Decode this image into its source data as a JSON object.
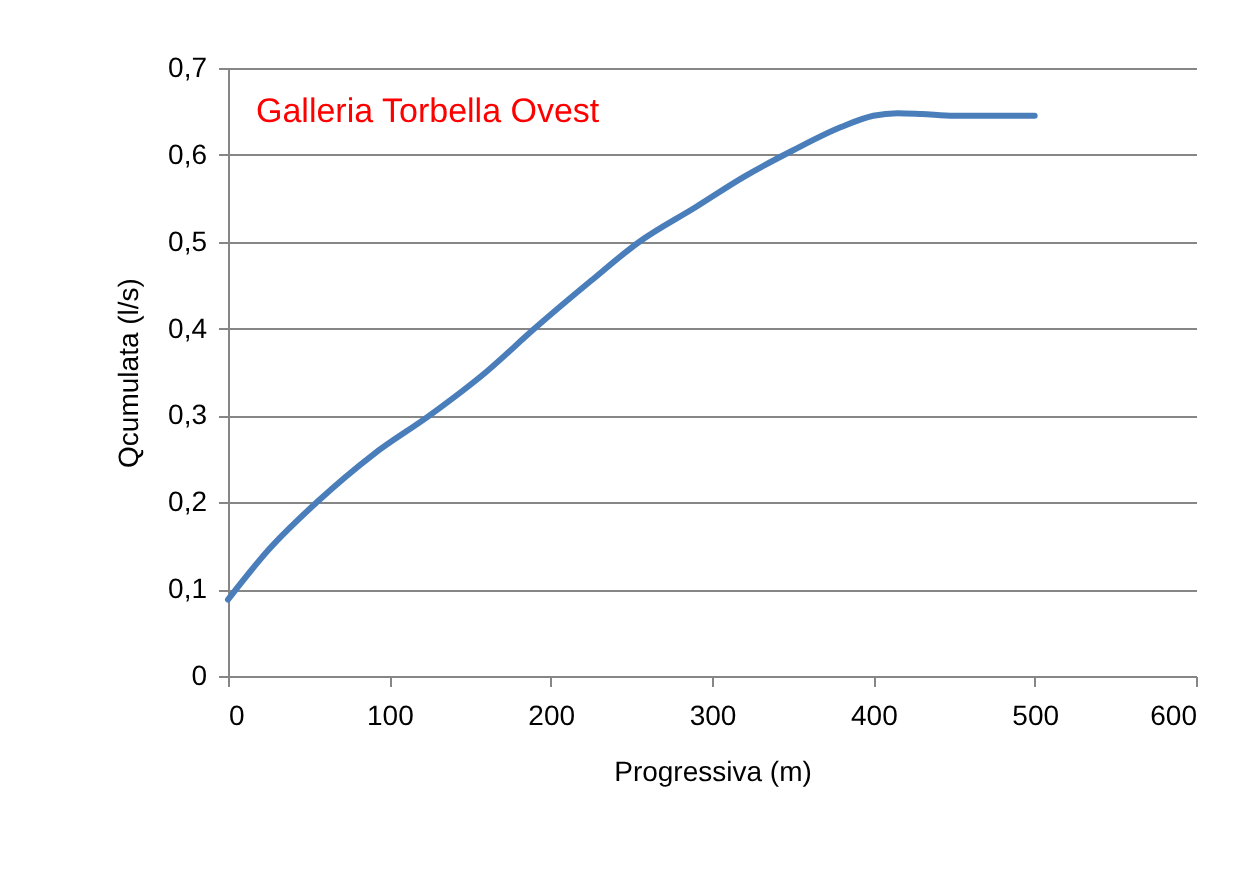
{
  "chart_data": {
    "type": "line",
    "xlabel": "Progressiva (m)",
    "ylabel": "Qcumulata (l/s)",
    "annotations": [
      "Galleria Torbella Ovest"
    ],
    "x": [
      0,
      25,
      55,
      90,
      125,
      160,
      190,
      225,
      255,
      290,
      320,
      350,
      380,
      400,
      415,
      430,
      450,
      475,
      500
    ],
    "series": [
      {
        "color": "#4a7ebb",
        "values": [
          0.088,
          0.145,
          0.2,
          0.255,
          0.3,
          0.35,
          0.4,
          0.455,
          0.5,
          0.54,
          0.575,
          0.605,
          0.632,
          0.645,
          0.648,
          0.647,
          0.645,
          0.645,
          0.645
        ]
      }
    ],
    "xlim": [
      0,
      600
    ],
    "xticks": [
      0,
      100,
      200,
      300,
      400,
      500,
      600
    ],
    "ylim": [
      0,
      0.7
    ],
    "yticks": [
      0,
      {
        "value": 0.1,
        "label": "0,1"
      },
      {
        "value": 0.2,
        "label": "0,2"
      },
      {
        "value": 0.3,
        "label": "0,3"
      },
      {
        "value": 0.4,
        "label": "0,4"
      },
      {
        "value": 0.5,
        "label": "0,5"
      },
      {
        "value": 0.6,
        "label": "0,6"
      },
      {
        "value": 0.7,
        "label": "0,7"
      }
    ],
    "grid": "y",
    "marker": "none",
    "line_style": "solid"
  }
}
